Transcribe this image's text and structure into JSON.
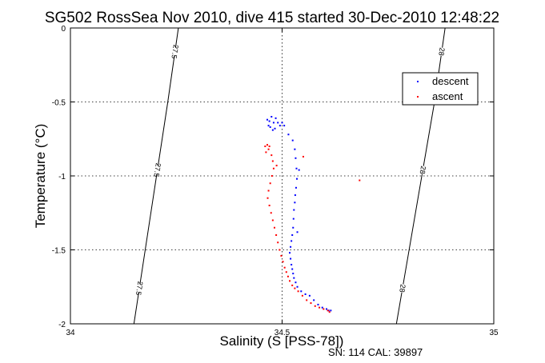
{
  "title": "SG502 RossSea Nov 2010, dive 415 started 30-Dec-2010 12:48:22",
  "footer": "SN: 114  CAL: 39897",
  "chart_data": {
    "type": "scatter",
    "xlabel": "Salinity (S [PSS-78])",
    "ylabel": "Temperature (°C)",
    "xlim": [
      34,
      35
    ],
    "ylim": [
      -2,
      0
    ],
    "x_ticks": [
      34,
      34.5,
      35
    ],
    "y_ticks": [
      0,
      -0.5,
      -1,
      -1.5,
      -2
    ],
    "x_tick_labels": [
      "34",
      "34.5",
      "35"
    ],
    "y_tick_labels": [
      "0",
      "-0.5",
      "-1",
      "-1.5",
      "-2"
    ],
    "grid": true,
    "legend_position": "top-right",
    "isopycnals": [
      {
        "label": "27.5",
        "points": [
          [
            34.15,
            -2.0
          ],
          [
            34.23,
            -0.5
          ],
          [
            34.255,
            0.0
          ]
        ]
      },
      {
        "label": "28",
        "points": [
          [
            34.77,
            -2.0
          ],
          [
            34.86,
            -0.5
          ],
          [
            34.885,
            0.0
          ]
        ]
      }
    ],
    "series": [
      {
        "name": "descent",
        "color": "#0000ff",
        "points": [
          [
            34.465,
            -0.62
          ],
          [
            34.47,
            -0.63
          ],
          [
            34.475,
            -0.6
          ],
          [
            34.48,
            -0.64
          ],
          [
            34.485,
            -0.61
          ],
          [
            34.49,
            -0.64
          ],
          [
            34.495,
            -0.66
          ],
          [
            34.472,
            -0.67
          ],
          [
            34.478,
            -0.69
          ],
          [
            34.468,
            -0.66
          ],
          [
            34.483,
            -0.68
          ],
          [
            34.5,
            -0.64
          ],
          [
            34.505,
            -0.66
          ],
          [
            34.515,
            -0.72
          ],
          [
            34.525,
            -0.76
          ],
          [
            34.53,
            -0.82
          ],
          [
            34.532,
            -0.88
          ],
          [
            34.534,
            -0.95
          ],
          [
            34.535,
            -1.02
          ],
          [
            34.533,
            -1.08
          ],
          [
            34.531,
            -1.13
          ],
          [
            34.53,
            -1.18
          ],
          [
            34.528,
            -1.23
          ],
          [
            34.527,
            -1.29
          ],
          [
            34.526,
            -1.35
          ],
          [
            34.524,
            -1.4
          ],
          [
            34.522,
            -1.44
          ],
          [
            34.52,
            -1.48
          ],
          [
            34.518,
            -1.52
          ],
          [
            34.52,
            -1.56
          ],
          [
            34.522,
            -1.6
          ],
          [
            34.524,
            -1.63
          ],
          [
            34.526,
            -1.66
          ],
          [
            34.528,
            -1.69
          ],
          [
            34.532,
            -1.72
          ],
          [
            34.536,
            -1.75
          ],
          [
            34.545,
            -1.78
          ],
          [
            34.555,
            -1.8
          ],
          [
            34.565,
            -1.81
          ],
          [
            34.575,
            -1.84
          ],
          [
            34.585,
            -1.87
          ],
          [
            34.595,
            -1.89
          ],
          [
            34.605,
            -1.9
          ],
          [
            34.61,
            -1.91
          ],
          [
            34.615,
            -1.91
          ],
          [
            34.54,
            -0.96
          ],
          [
            34.536,
            -1.38
          ]
        ]
      },
      {
        "name": "ascent",
        "color": "#ff0000",
        "points": [
          [
            34.46,
            -0.8
          ],
          [
            34.465,
            -0.79
          ],
          [
            34.47,
            -0.8
          ],
          [
            34.468,
            -0.82
          ],
          [
            34.462,
            -0.84
          ],
          [
            34.475,
            -0.86
          ],
          [
            34.478,
            -0.9
          ],
          [
            34.48,
            -0.95
          ],
          [
            34.476,
            -1.0
          ],
          [
            34.472,
            -1.05
          ],
          [
            34.468,
            -1.1
          ],
          [
            34.466,
            -1.15
          ],
          [
            34.47,
            -1.2
          ],
          [
            34.474,
            -1.25
          ],
          [
            34.478,
            -1.3
          ],
          [
            34.482,
            -1.35
          ],
          [
            34.486,
            -1.4
          ],
          [
            34.49,
            -1.45
          ],
          [
            34.494,
            -1.5
          ],
          [
            34.498,
            -1.54
          ],
          [
            34.502,
            -1.58
          ],
          [
            34.506,
            -1.62
          ],
          [
            34.51,
            -1.65
          ],
          [
            34.514,
            -1.68
          ],
          [
            34.518,
            -1.71
          ],
          [
            34.524,
            -1.74
          ],
          [
            34.53,
            -1.76
          ],
          [
            34.538,
            -1.78
          ],
          [
            34.548,
            -1.81
          ],
          [
            34.558,
            -1.84
          ],
          [
            34.568,
            -1.86
          ],
          [
            34.578,
            -1.88
          ],
          [
            34.588,
            -1.89
          ],
          [
            34.598,
            -1.9
          ],
          [
            34.608,
            -1.91
          ],
          [
            34.612,
            -1.92
          ],
          [
            34.55,
            -0.87
          ],
          [
            34.487,
            -0.93
          ],
          [
            34.683,
            -1.03
          ]
        ]
      }
    ]
  }
}
